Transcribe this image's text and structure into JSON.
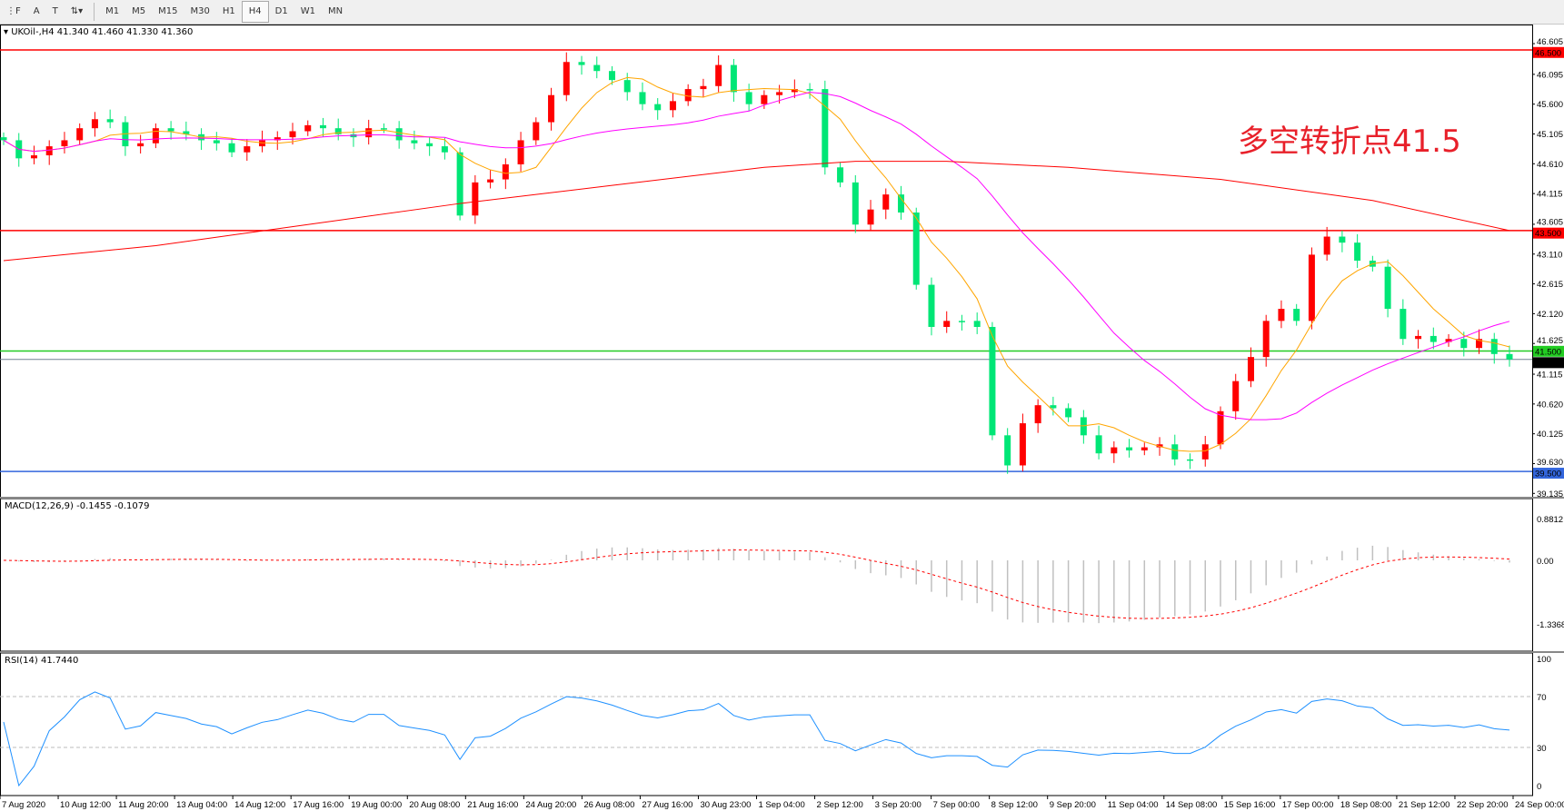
{
  "toolbar": {
    "tools": [
      {
        "icon": "grid-icon",
        "label": "⋮F"
      },
      {
        "icon": "text-icon",
        "label": "A"
      },
      {
        "icon": "text-label-icon",
        "label": "T"
      },
      {
        "icon": "arrows-icon",
        "label": "⇅▾"
      }
    ],
    "timeframes": [
      "M1",
      "M5",
      "M15",
      "M30",
      "H1",
      "H4",
      "D1",
      "W1",
      "MN"
    ],
    "active_timeframe": "H4"
  },
  "main": {
    "header": "UKOil-,H4  41.340 41.460 41.330 41.360",
    "annotation": "多空转折点41.5"
  },
  "colors": {
    "bull": "#ff0000",
    "bear": "#00e676",
    "ma_fast": "#ffa500",
    "ma_mid": "#ff00ff",
    "ma_slow": "#ff0000",
    "rsi": "#1e90ff",
    "macd_signal": "#ff0000",
    "macd_hist": "#c0c0c0"
  },
  "chart_data": [
    {
      "type": "candlestick",
      "symbol": "UKOil-",
      "timeframe": "H4",
      "ylim": [
        39.0,
        46.7
      ],
      "y_ticks": [
        "46.605",
        "46.095",
        "45.600",
        "45.105",
        "44.610",
        "44.115",
        "43.605",
        "43.110",
        "42.615",
        "42.120",
        "41.625",
        "41.115",
        "40.620",
        "40.125",
        "39.630",
        "39.135"
      ],
      "x_ticks": [
        "7 Aug 2020",
        "10 Aug 12:00",
        "11 Aug 20:00",
        "13 Aug 04:00",
        "14 Aug 12:00",
        "17 Aug 16:00",
        "19 Aug 00:00",
        "20 Aug 08:00",
        "21 Aug 16:00",
        "24 Aug 20:00",
        "26 Aug 08:00",
        "27 Aug 16:00",
        "30 Aug 23:00",
        "1 Sep 04:00",
        "2 Sep 12:00",
        "3 Sep 20:00",
        "7 Sep 00:00",
        "8 Sep 12:00",
        "9 Sep 20:00",
        "11 Sep 04:00",
        "14 Sep 08:00",
        "15 Sep 16:00",
        "17 Sep 00:00",
        "18 Sep 08:00",
        "21 Sep 12:00",
        "22 Sep 20:00",
        "24 Sep 00:00"
      ],
      "close": [
        45.0,
        44.7,
        44.75,
        44.9,
        45.0,
        45.2,
        45.35,
        45.3,
        44.9,
        44.95,
        45.2,
        45.15,
        45.1,
        45.0,
        44.95,
        44.8,
        44.9,
        45.0,
        45.05,
        45.15,
        45.25,
        45.2,
        45.1,
        45.05,
        45.2,
        45.2,
        45.0,
        44.95,
        44.9,
        44.8,
        43.75,
        44.3,
        44.35,
        44.6,
        45.0,
        45.3,
        45.75,
        46.3,
        46.25,
        46.15,
        46.0,
        45.8,
        45.6,
        45.5,
        45.65,
        45.85,
        45.9,
        46.25,
        45.8,
        45.6,
        45.75,
        45.8,
        45.85,
        45.85,
        44.55,
        44.3,
        43.6,
        43.85,
        44.1,
        43.8,
        42.6,
        41.9,
        42.0,
        42.0,
        41.9,
        40.1,
        39.6,
        40.3,
        40.6,
        40.55,
        40.4,
        40.1,
        39.8,
        39.9,
        39.85,
        39.9,
        39.95,
        39.7,
        39.7,
        39.95,
        40.5,
        41.0,
        41.4,
        42.0,
        42.2,
        42.0,
        43.1,
        43.4,
        43.3,
        43.0,
        42.9,
        42.2,
        41.7,
        41.75,
        41.65,
        41.7,
        41.55,
        41.7,
        41.45,
        41.36
      ],
      "ma_slow": [
        [
          0,
          43.0
        ],
        [
          10,
          43.25
        ],
        [
          20,
          43.6
        ],
        [
          30,
          43.95
        ],
        [
          40,
          44.25
        ],
        [
          50,
          44.55
        ],
        [
          56,
          44.65
        ],
        [
          62,
          44.65
        ],
        [
          70,
          44.55
        ],
        [
          80,
          44.35
        ],
        [
          90,
          44.0
        ],
        [
          99,
          43.5
        ]
      ],
      "hlines": [
        {
          "value": 46.5,
          "label": "46.500",
          "color": "#ff0000"
        },
        {
          "value": 43.5,
          "label": "43.500",
          "color": "#ff0000"
        },
        {
          "value": 41.5,
          "label": "41.500",
          "color": "#22cc22"
        },
        {
          "value": 41.36,
          "label": "41.360",
          "color": "#708090",
          "bg": "#000"
        },
        {
          "value": 39.5,
          "label": "39.500",
          "color": "#3366dd"
        }
      ]
    },
    {
      "type": "bar",
      "name": "MACD(12,26,9) -0.1455 -0.1079",
      "ylim": [
        -1.3368,
        0.8812
      ],
      "y_ticks": [
        "0.8812",
        "0.00",
        "-1.3368"
      ]
    },
    {
      "type": "line",
      "name": "RSI(14) 41.7440",
      "ylim": [
        0,
        100
      ],
      "levels": [
        30,
        70
      ],
      "y_ticks": [
        "100",
        "70",
        "30",
        "0"
      ]
    }
  ]
}
